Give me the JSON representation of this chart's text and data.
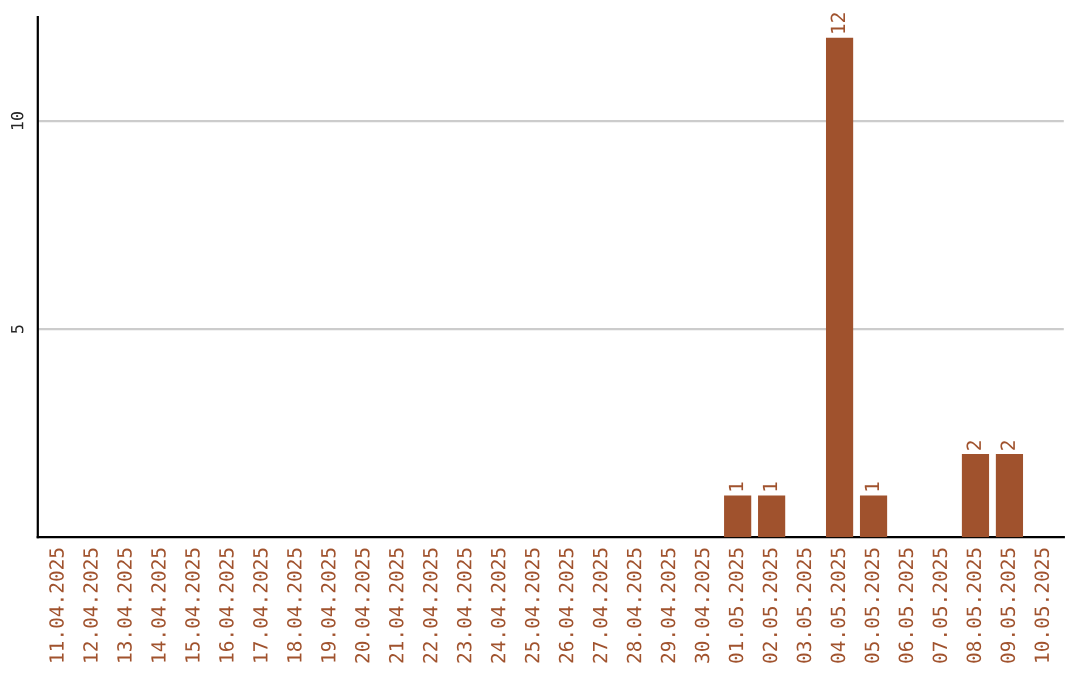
{
  "chart_data": {
    "type": "bar",
    "categories": [
      "11.04.2025",
      "12.04.2025",
      "13.04.2025",
      "14.04.2025",
      "15.04.2025",
      "16.04.2025",
      "17.04.2025",
      "18.04.2025",
      "19.04.2025",
      "20.04.2025",
      "21.04.2025",
      "22.04.2025",
      "23.04.2025",
      "24.04.2025",
      "25.04.2025",
      "26.04.2025",
      "27.04.2025",
      "28.04.2025",
      "29.04.2025",
      "30.04.2025",
      "01.05.2025",
      "02.05.2025",
      "03.05.2025",
      "04.05.2025",
      "05.05.2025",
      "06.05.2025",
      "07.05.2025",
      "08.05.2025",
      "09.05.2025",
      "10.05.2025"
    ],
    "values": [
      0,
      0,
      0,
      0,
      0,
      0,
      0,
      0,
      0,
      0,
      0,
      0,
      0,
      0,
      0,
      0,
      0,
      0,
      0,
      0,
      1,
      1,
      0,
      12,
      1,
      0,
      0,
      2,
      2,
      0
    ],
    "value_labels": [
      null,
      null,
      null,
      null,
      null,
      null,
      null,
      null,
      null,
      null,
      null,
      null,
      null,
      null,
      null,
      null,
      null,
      null,
      null,
      null,
      "1",
      "1",
      null,
      "12",
      "1",
      null,
      null,
      "2",
      "2",
      null
    ],
    "color": "#a0522d",
    "ylim": [
      0,
      12.5
    ],
    "yticks": [
      5,
      10
    ],
    "grid": "y"
  }
}
